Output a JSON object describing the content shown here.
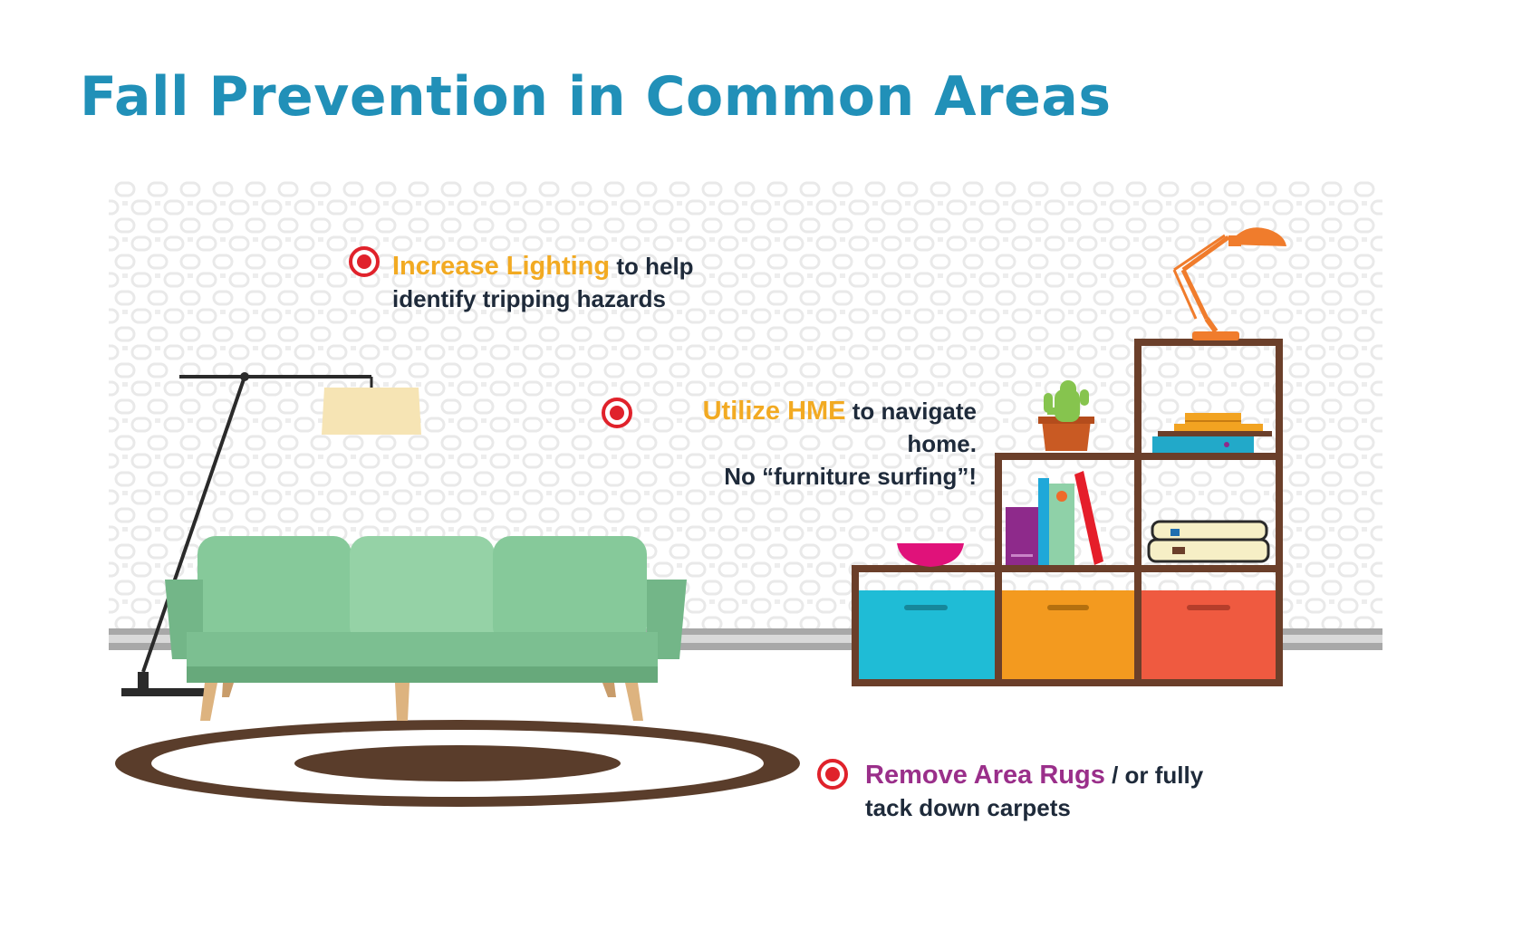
{
  "page": {
    "title": "Fall Prevention in Common Areas"
  },
  "callouts": {
    "lighting": {
      "highlight": "Increase Lighting",
      "rest": " to help",
      "line2": "identify tripping hazards"
    },
    "hme": {
      "highlight": "Utilize HME",
      "rest": " to navigate",
      "line2": "home.",
      "line3": "No “furniture surfing”!"
    },
    "rugs": {
      "highlight": "Remove Area Rugs",
      "rest": " / or fully",
      "line2": "tack down carpets"
    }
  },
  "colors": {
    "title": "#2190b8",
    "highlight_orange": "#f2aa22",
    "highlight_purple": "#9a2f8a",
    "bullet_red": "#e0222b",
    "sofa": "#86c99a",
    "rug": "#5a3d2b",
    "shelf": "#6b3f2a",
    "bin_blue": "#1fbcd6",
    "bin_orange": "#f39a1f",
    "bin_red": "#ef5a40"
  },
  "icons": {
    "bullet": "target-bullet-icon"
  }
}
